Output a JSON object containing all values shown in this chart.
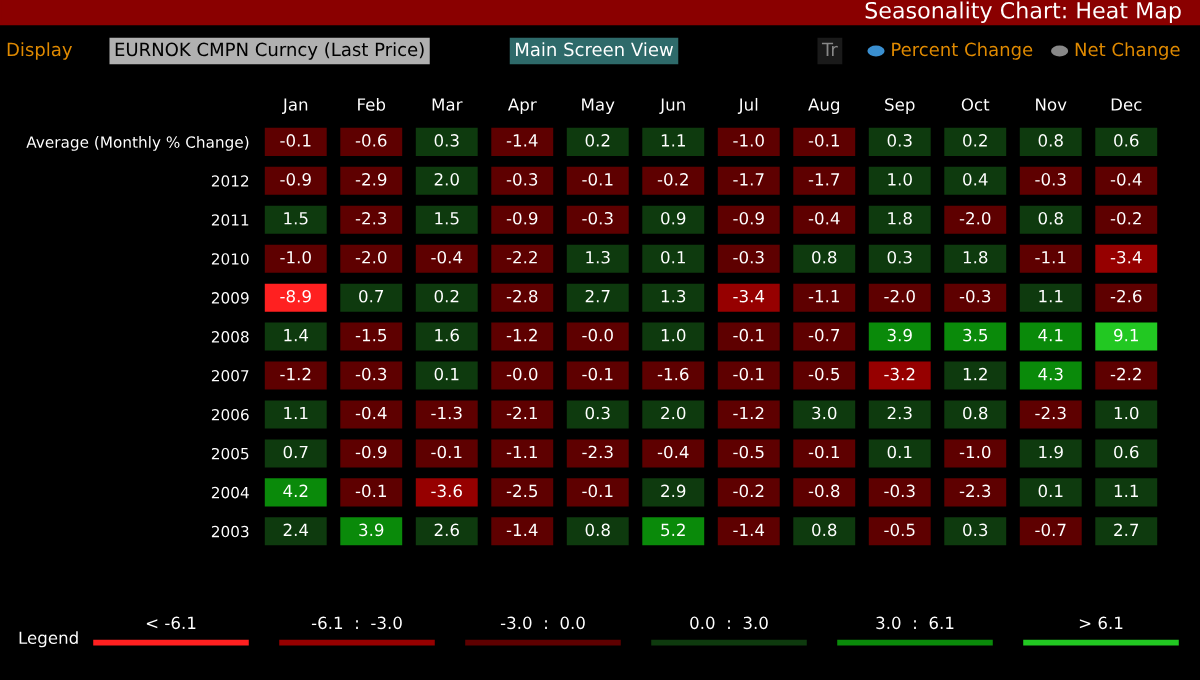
{
  "chart_data": {
    "type": "heatmap",
    "title": "Seasonality Chart: Heat Map",
    "categories": [
      "Jan",
      "Feb",
      "Mar",
      "Apr",
      "May",
      "Jun",
      "Jul",
      "Aug",
      "Sep",
      "Oct",
      "Nov",
      "Dec"
    ],
    "y_categories": [
      "Average (Monthly % Change)",
      "2012",
      "2011",
      "2010",
      "2009",
      "2008",
      "2007",
      "2006",
      "2005",
      "2004",
      "2003"
    ],
    "cells": [
      [
        -0.1,
        -0.6,
        0.3,
        -1.4,
        0.2,
        1.1,
        -1.0,
        -0.1,
        0.3,
        0.2,
        0.8,
        0.6
      ],
      [
        -0.9,
        -2.9,
        2.0,
        -0.3,
        -0.1,
        -0.2,
        -1.7,
        -1.7,
        1.0,
        0.4,
        -0.3,
        -0.4
      ],
      [
        1.5,
        -2.3,
        1.5,
        -0.9,
        -0.3,
        0.9,
        -0.9,
        -0.4,
        1.8,
        -2.0,
        0.8,
        -0.2
      ],
      [
        -1.0,
        -2.0,
        -0.4,
        -2.2,
        1.3,
        0.1,
        -0.3,
        0.8,
        0.3,
        1.8,
        -1.1,
        -3.4
      ],
      [
        -8.9,
        0.7,
        0.2,
        -2.8,
        2.7,
        1.3,
        -3.4,
        -1.1,
        -2.0,
        -0.3,
        1.1,
        -2.6
      ],
      [
        1.4,
        -1.5,
        1.6,
        -1.2,
        -0.0,
        1.0,
        -0.1,
        -0.7,
        3.9,
        3.5,
        4.1,
        9.1
      ],
      [
        -1.2,
        -0.3,
        0.1,
        -0.0,
        -0.1,
        -1.6,
        -0.1,
        -0.5,
        -3.2,
        1.2,
        4.3,
        -2.2
      ],
      [
        1.1,
        -0.4,
        -1.3,
        -2.1,
        0.3,
        2.0,
        -1.2,
        3.0,
        2.3,
        0.8,
        -2.3,
        1.0
      ],
      [
        0.7,
        -0.9,
        -0.1,
        -1.1,
        -2.3,
        -0.4,
        -0.5,
        -0.1,
        0.1,
        -1.0,
        1.9,
        0.6
      ],
      [
        4.2,
        -0.1,
        -3.6,
        -2.5,
        -0.1,
        2.9,
        -0.2,
        -0.8,
        -0.3,
        -2.3,
        0.1,
        1.1
      ],
      [
        2.4,
        3.9,
        2.6,
        -1.4,
        0.8,
        5.2,
        -1.4,
        0.8,
        -0.5,
        0.3,
        -0.7,
        2.7
      ]
    ],
    "colors": [
      [
        "#5e0000",
        "#5e0000",
        "#0e3a0e",
        "#5e0000",
        "#0e3a0e",
        "#0e3a0e",
        "#5e0000",
        "#5e0000",
        "#0e3a0e",
        "#0e3a0e",
        "#0e3a0e",
        "#0e3a0e"
      ],
      [
        "#5e0000",
        "#5e0000",
        "#0e3a0e",
        "#5e0000",
        "#5e0000",
        "#5e0000",
        "#5e0000",
        "#5e0000",
        "#0e3a0e",
        "#0e3a0e",
        "#5e0000",
        "#5e0000"
      ],
      [
        "#0e3a0e",
        "#5e0000",
        "#0e3a0e",
        "#5e0000",
        "#5e0000",
        "#0e3a0e",
        "#5e0000",
        "#5e0000",
        "#0e3a0e",
        "#5e0000",
        "#0e3a0e",
        "#5e0000"
      ],
      [
        "#5e0000",
        "#5e0000",
        "#5e0000",
        "#5e0000",
        "#0e3a0e",
        "#0e3a0e",
        "#5e0000",
        "#0e3a0e",
        "#0e3a0e",
        "#0e3a0e",
        "#5e0000",
        "#960000"
      ],
      [
        "#ff2020",
        "#0e3a0e",
        "#0e3a0e",
        "#5e0000",
        "#0e3a0e",
        "#0e3a0e",
        "#960000",
        "#5e0000",
        "#5e0000",
        "#5e0000",
        "#0e3a0e",
        "#5e0000"
      ],
      [
        "#0e3a0e",
        "#5e0000",
        "#0e3a0e",
        "#5e0000",
        "#5e0000",
        "#0e3a0e",
        "#5e0000",
        "#5e0000",
        "#0a8a0a",
        "#0a8a0a",
        "#0a8a0a",
        "#22c822"
      ],
      [
        "#5e0000",
        "#5e0000",
        "#0e3a0e",
        "#5e0000",
        "#5e0000",
        "#5e0000",
        "#5e0000",
        "#5e0000",
        "#960000",
        "#0e3a0e",
        "#0a8a0a",
        "#5e0000"
      ],
      [
        "#0e3a0e",
        "#5e0000",
        "#5e0000",
        "#5e0000",
        "#0e3a0e",
        "#0e3a0e",
        "#5e0000",
        "#0e3a0e",
        "#0e3a0e",
        "#0e3a0e",
        "#5e0000",
        "#0e3a0e"
      ],
      [
        "#0e3a0e",
        "#5e0000",
        "#5e0000",
        "#5e0000",
        "#5e0000",
        "#5e0000",
        "#5e0000",
        "#5e0000",
        "#0e3a0e",
        "#5e0000",
        "#0e3a0e",
        "#0e3a0e"
      ],
      [
        "#0a8a0a",
        "#5e0000",
        "#960000",
        "#5e0000",
        "#5e0000",
        "#0e3a0e",
        "#5e0000",
        "#5e0000",
        "#5e0000",
        "#5e0000",
        "#0e3a0e",
        "#0e3a0e"
      ],
      [
        "#0e3a0e",
        "#0a8a0a",
        "#0e3a0e",
        "#5e0000",
        "#0e3a0e",
        "#0a8a0a",
        "#5e0000",
        "#0e3a0e",
        "#5e0000",
        "#0e3a0e",
        "#5e0000",
        "#0e3a0e"
      ]
    ],
    "data_labels": true,
    "cell_labels": [
      [
        "-0.1",
        "-0.6",
        "0.3",
        "-1.4",
        "0.2",
        "1.1",
        "-1.0",
        "-0.1",
        "0.3",
        "0.2",
        "0.8",
        "0.6"
      ],
      [
        "-0.9",
        "-2.9",
        "2.0",
        "-0.3",
        "-0.1",
        "-0.2",
        "-1.7",
        "-1.7",
        "1.0",
        "0.4",
        "-0.3",
        "-0.4"
      ],
      [
        "1.5",
        "-2.3",
        "1.5",
        "-0.9",
        "-0.3",
        "0.9",
        "-0.9",
        "-0.4",
        "1.8",
        "-2.0",
        "0.8",
        "-0.2"
      ],
      [
        "-1.0",
        "-2.0",
        "-0.4",
        "-2.2",
        "1.3",
        "0.1",
        "-0.3",
        "0.8",
        "0.3",
        "1.8",
        "-1.1",
        "-3.4"
      ],
      [
        "-8.9",
        "0.7",
        "0.2",
        "-2.8",
        "2.7",
        "1.3",
        "-3.4",
        "-1.1",
        "-2.0",
        "-0.3",
        "1.1",
        "-2.6"
      ],
      [
        "1.4",
        "-1.5",
        "1.6",
        "-1.2",
        "-0.0",
        "1.0",
        "-0.1",
        "-0.7",
        "3.9",
        "3.5",
        "4.1",
        "9.1"
      ],
      [
        "-1.2",
        "-0.3",
        "0.1",
        "-0.0",
        "-0.1",
        "-1.6",
        "-0.1",
        "-0.5",
        "-3.2",
        "1.2",
        "4.3",
        "-2.2"
      ],
      [
        "1.1",
        "-0.4",
        "-1.3",
        "-2.1",
        "0.3",
        "2.0",
        "-1.2",
        "3.0",
        "2.3",
        "0.8",
        "-2.3",
        "1.0"
      ],
      [
        "0.7",
        "-0.9",
        "-0.1",
        "-1.1",
        "-2.3",
        "-0.4",
        "-0.5",
        "-0.1",
        "0.1",
        "-1.0",
        "1.9",
        "0.6"
      ],
      [
        "4.2",
        "-0.1",
        "-3.6",
        "-2.5",
        "-0.1",
        "2.9",
        "-0.2",
        "-0.8",
        "-0.3",
        "-2.3",
        "0.1",
        "1.1"
      ],
      [
        "2.4",
        "3.9",
        "2.6",
        "-1.4",
        "0.8",
        "5.2",
        "-1.4",
        "0.8",
        "-0.5",
        "0.3",
        "-0.7",
        "2.7"
      ]
    ],
    "annotations": [
      "Display",
      "EURNOK CMPN Curncy (Last Price)",
      "Main Screen View",
      "Tr",
      "Percent Change",
      "Net Change",
      "Legend",
      "< -6.1",
      "-6.1  :  -3.0",
      "-3.0  :  0.0",
      "0.0  :  3.0",
      "3.0  :  6.1",
      "> 6.1"
    ]
  }
}
